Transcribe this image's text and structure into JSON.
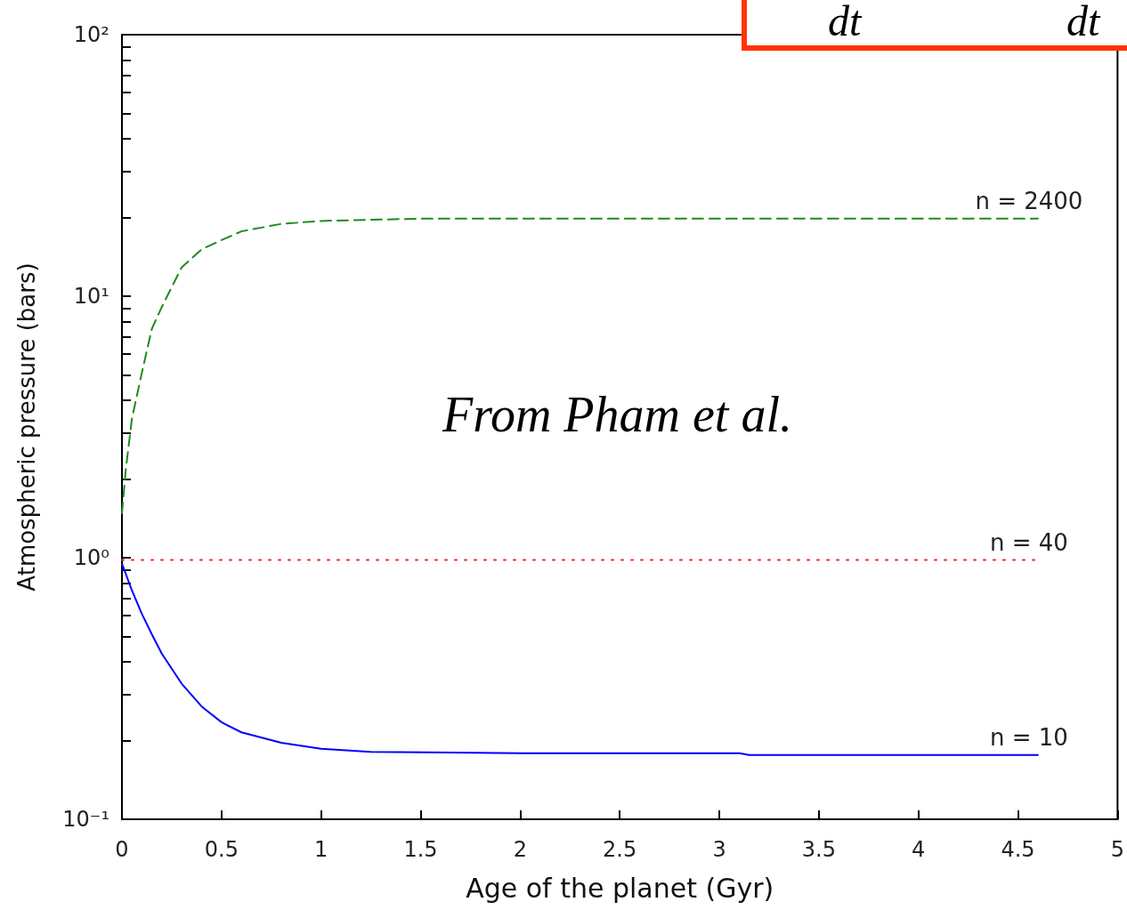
{
  "chart_data": {
    "type": "line",
    "xlabel": "Age of the planet (Gyr)",
    "ylabel": "Atmospheric pressure (bars)",
    "annotations": [
      "From Pham et al.",
      "dt",
      "dt"
    ],
    "xlim": [
      0,
      5
    ],
    "xticks": [
      0,
      0.5,
      1,
      1.5,
      2,
      2.5,
      3,
      3.5,
      4,
      4.5,
      5
    ],
    "ylim": [
      0.1,
      100
    ],
    "log": true,
    "yticks": [
      {
        "value": 0.1,
        "label": "10⁻¹"
      },
      {
        "value": 0.2,
        "label": null
      },
      {
        "value": 0.3,
        "label": null
      },
      {
        "value": 0.4,
        "label": null
      },
      {
        "value": 0.5,
        "label": null
      },
      {
        "value": 0.6,
        "label": null
      },
      {
        "value": 0.7,
        "label": null
      },
      {
        "value": 0.8,
        "label": null
      },
      {
        "value": 0.9,
        "label": null
      },
      {
        "value": 1,
        "label": "10⁰"
      },
      {
        "value": 2,
        "label": null
      },
      {
        "value": 3,
        "label": null
      },
      {
        "value": 4,
        "label": null
      },
      {
        "value": 5,
        "label": null
      },
      {
        "value": 6,
        "label": null
      },
      {
        "value": 7,
        "label": null
      },
      {
        "value": 8,
        "label": null
      },
      {
        "value": 9,
        "label": null
      },
      {
        "value": 10,
        "label": "10¹"
      },
      {
        "value": 20,
        "label": null
      },
      {
        "value": 30,
        "label": null
      },
      {
        "value": 40,
        "label": null
      },
      {
        "value": 50,
        "label": null
      },
      {
        "value": 60,
        "label": null
      },
      {
        "value": 70,
        "label": null
      },
      {
        "value": 80,
        "label": null
      },
      {
        "value": 90,
        "label": null
      },
      {
        "value": 100,
        "label": "10²"
      }
    ],
    "grid": false,
    "legend": false,
    "marker": "none",
    "series": [
      {
        "name": "n = 2400",
        "color": "#1f8a1f",
        "line_style": "dashed",
        "x": [
          0,
          0.02,
          0.05,
          0.1,
          0.15,
          0.2,
          0.3,
          0.4,
          0.5,
          0.6,
          0.8,
          1,
          1.25,
          1.5,
          2,
          3,
          4,
          4.6
        ],
        "values": [
          1.48,
          2.2,
          3.4,
          5.1,
          7.5,
          9.1,
          12.9,
          15.1,
          16.4,
          17.7,
          18.9,
          19.4,
          19.6,
          19.8,
          19.8,
          19.8,
          19.8,
          19.8
        ]
      },
      {
        "name": "n = 40",
        "color": "#ff2020",
        "line_style": "dotted",
        "x": [
          0,
          4.6
        ],
        "values": [
          0.98,
          0.98
        ]
      },
      {
        "name": "n = 10",
        "color": "#0000ff",
        "line_style": "solid",
        "x": [
          0,
          0.05,
          0.1,
          0.15,
          0.2,
          0.3,
          0.4,
          0.5,
          0.6,
          0.8,
          1,
          1.25,
          2,
          3.1,
          3.15,
          4.6
        ],
        "values": [
          0.95,
          0.75,
          0.61,
          0.51,
          0.43,
          0.33,
          0.27,
          0.235,
          0.215,
          0.196,
          0.186,
          0.181,
          0.179,
          0.179,
          0.176,
          0.176
        ]
      }
    ]
  }
}
